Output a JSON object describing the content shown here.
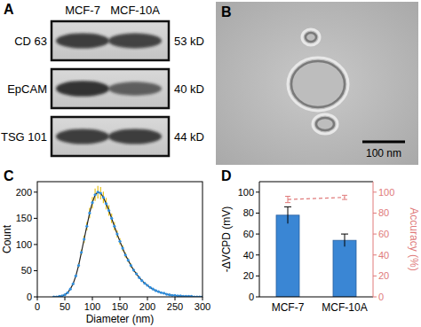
{
  "panel_labels": [
    "A",
    "B",
    "C",
    "D"
  ],
  "blot": {
    "columns": [
      "MCF-7",
      "MCF-10A"
    ],
    "rows": [
      {
        "protein": "CD 63",
        "size": "53 kD"
      },
      {
        "protein": "EpCAM",
        "size": "40 kD"
      },
      {
        "protein": "TSG 101",
        "size": "44 kD"
      }
    ]
  },
  "tem": {
    "scale_bar": "100 nm"
  },
  "chart_data": [
    {
      "type": "line",
      "x_label": "Diameter (nm)",
      "y_label": "Count",
      "x": [
        30,
        35,
        40,
        45,
        50,
        55,
        60,
        65,
        70,
        75,
        80,
        85,
        90,
        95,
        100,
        105,
        110,
        115,
        120,
        125,
        130,
        135,
        140,
        145,
        150,
        155,
        160,
        165,
        170,
        175,
        180,
        185,
        190,
        195,
        200,
        205,
        210,
        215,
        220,
        225,
        230,
        235,
        240,
        245,
        250,
        255,
        260,
        265,
        270,
        275,
        280,
        285,
        290,
        295,
        300
      ],
      "series": [
        {
          "color": "#2f8fe0",
          "marker": "circle",
          "values": [
            0,
            0,
            1,
            2,
            4,
            8,
            15,
            25,
            40,
            60,
            85,
            110,
            135,
            160,
            180,
            195,
            200,
            198,
            190,
            178,
            165,
            150,
            135,
            120,
            106,
            93,
            80,
            70,
            60,
            51,
            44,
            37,
            31,
            26,
            22,
            18,
            15,
            12,
            10,
            8,
            7,
            5,
            4,
            3,
            3,
            2,
            2,
            1,
            1,
            1,
            1,
            0,
            0,
            0,
            0
          ],
          "errors": [
            0,
            0,
            1,
            1,
            1,
            1,
            1,
            2,
            2,
            4,
            5,
            7,
            8,
            10,
            11,
            12,
            12,
            12,
            11,
            11,
            10,
            9,
            8,
            7,
            6,
            6,
            5,
            4,
            4,
            3,
            3,
            2,
            2,
            2,
            1,
            1,
            1,
            1,
            1,
            1,
            1,
            1,
            1,
            1,
            1,
            1,
            1,
            1,
            1,
            1,
            1,
            0,
            0,
            0,
            0
          ]
        }
      ],
      "xlim": [
        0,
        300
      ],
      "xticks": [
        0,
        50,
        100,
        150,
        200,
        250,
        300
      ],
      "ylim": [
        0,
        220
      ],
      "yticks": [
        0,
        50,
        100,
        150,
        200
      ]
    },
    {
      "type": "bar",
      "y_label": "-ΔVCPD (mV)",
      "y2_label": "Accuracy (%)",
      "categories": [
        "MCF-7",
        "MCF-10A"
      ],
      "series": [
        {
          "type": "bar",
          "color": "#3a86d4",
          "values": [
            78,
            54
          ],
          "errors": [
            8,
            6
          ]
        },
        {
          "type": "line",
          "axis": "y2",
          "color": "#e07a7a",
          "line_style": "dashed",
          "values": [
            93,
            95
          ],
          "errors": [
            3,
            2
          ]
        }
      ],
      "ylim": [
        0,
        110
      ],
      "yticks": [
        0,
        20,
        40,
        60,
        80,
        100
      ],
      "y2lim": [
        0,
        110
      ],
      "y2ticks": [
        0,
        20,
        40,
        60,
        80,
        100
      ]
    }
  ]
}
